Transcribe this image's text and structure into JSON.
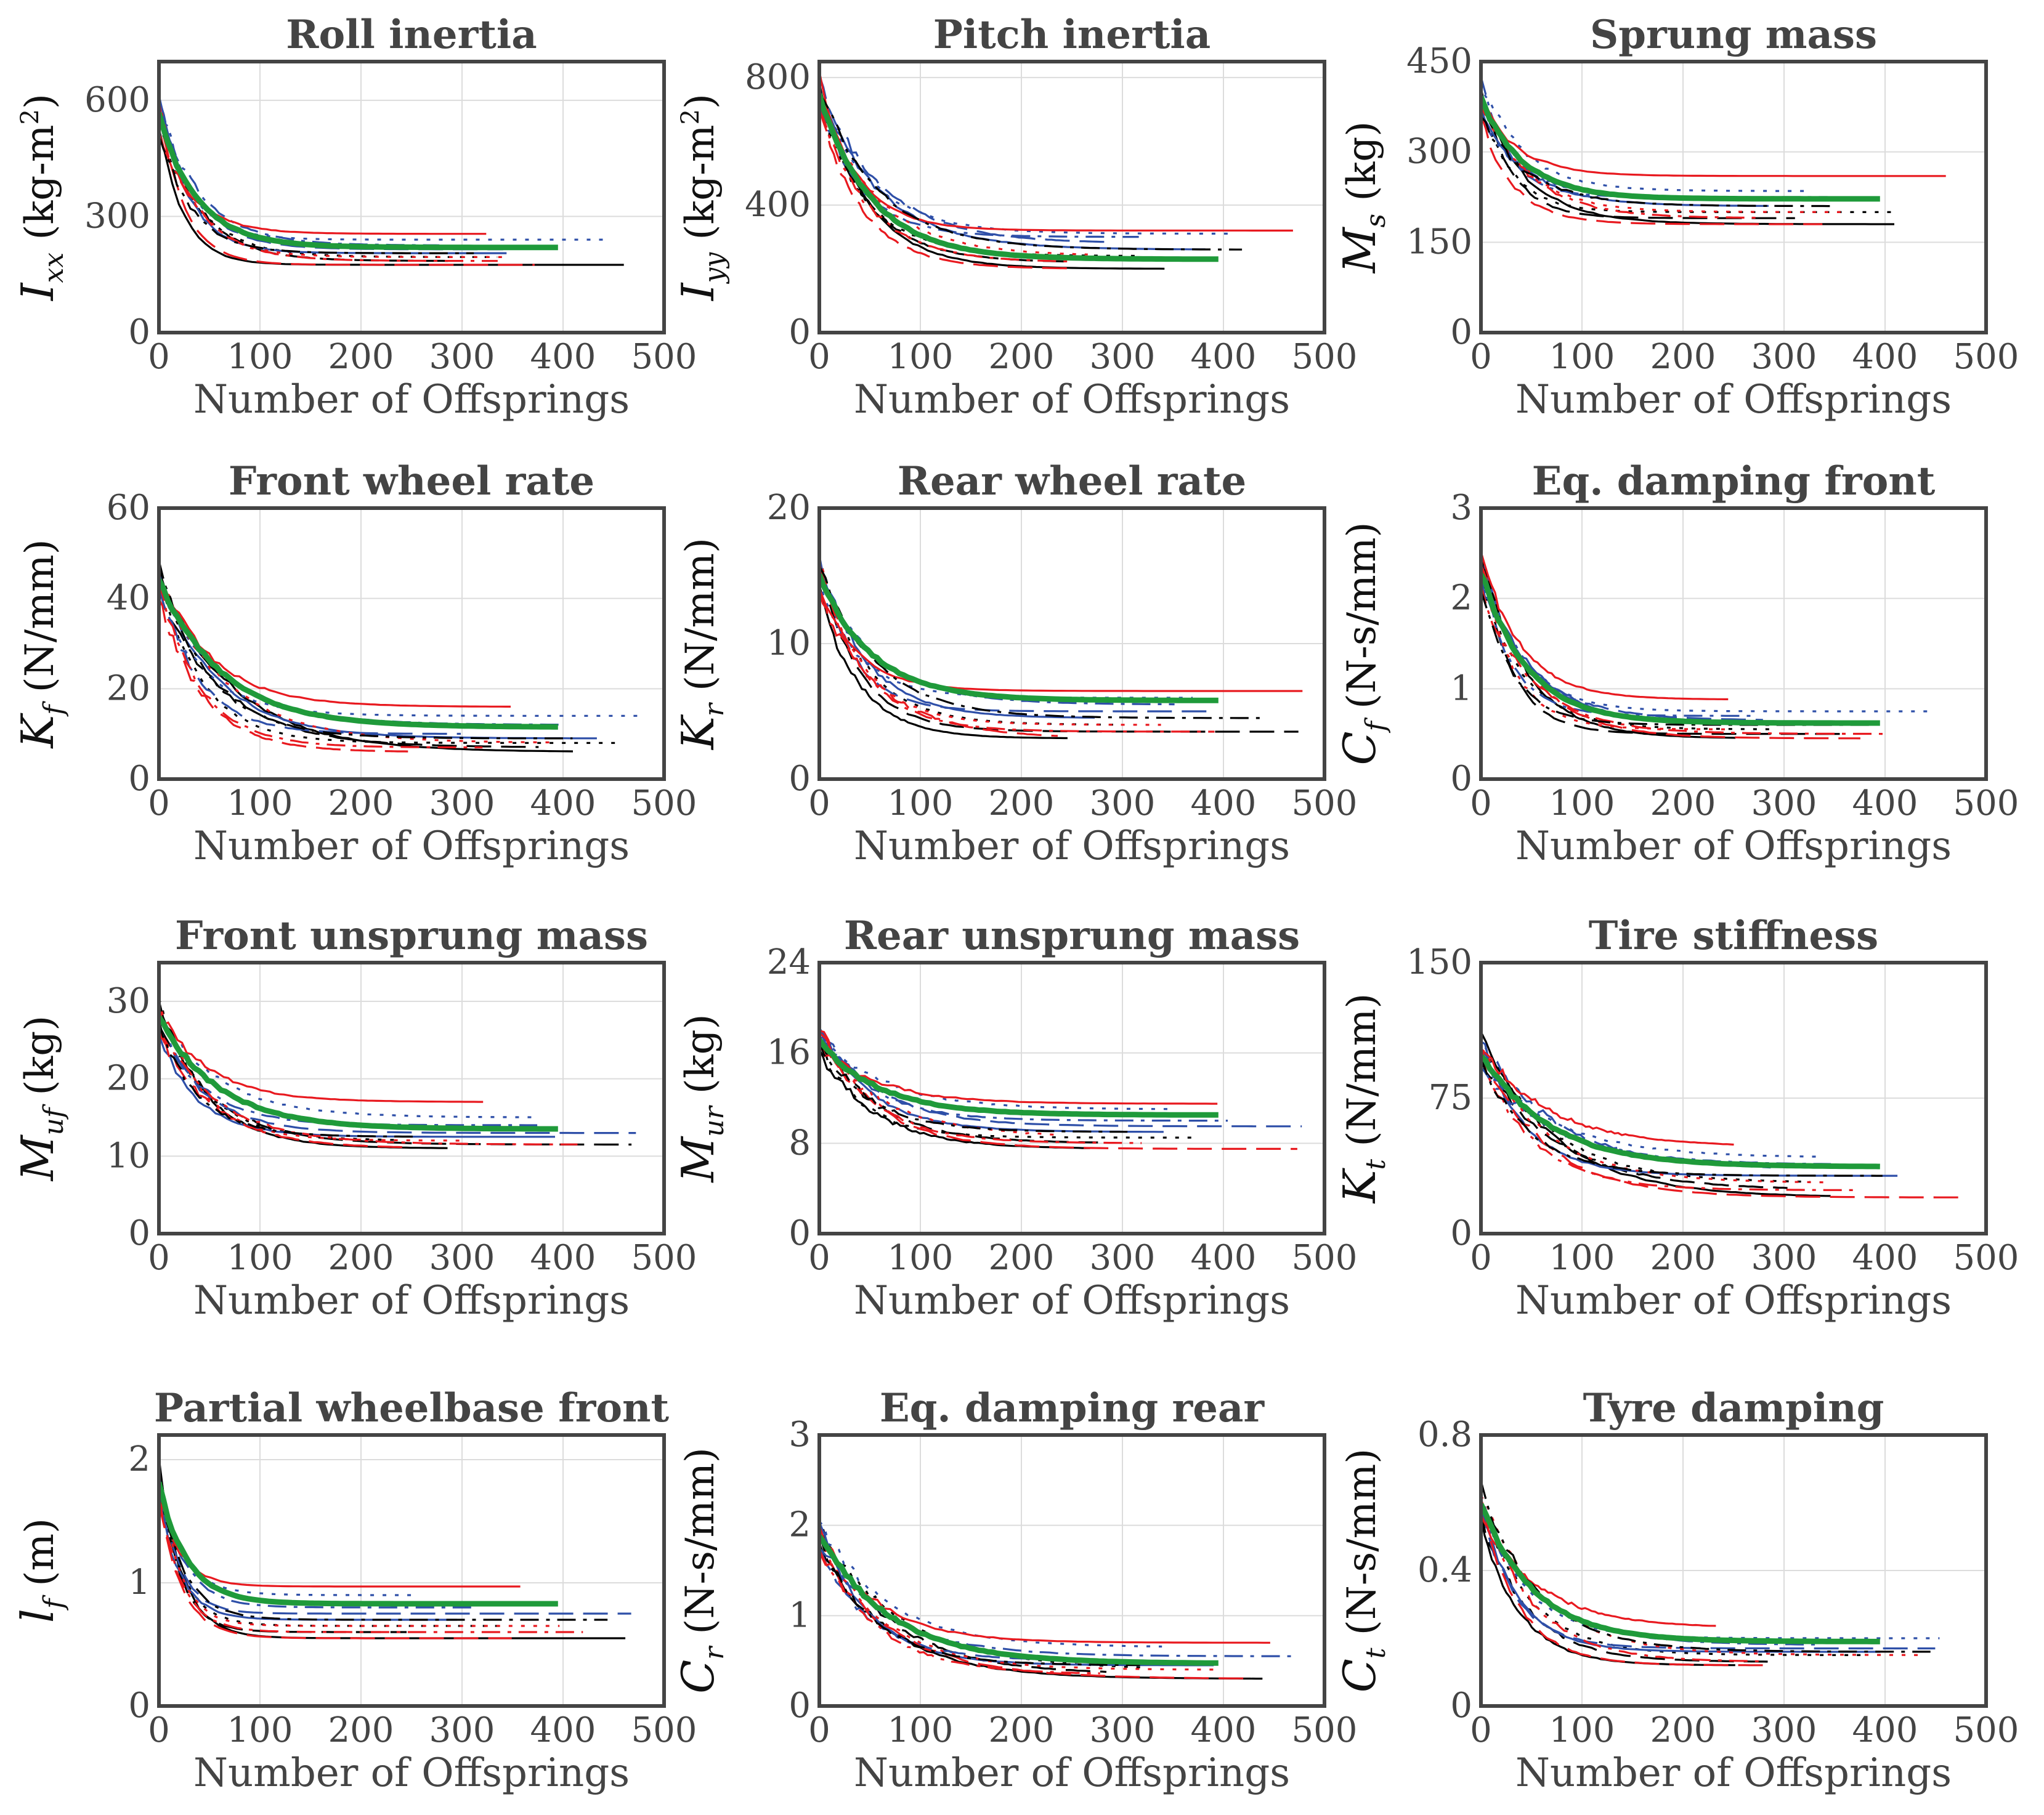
{
  "colors": {
    "black": "#000000",
    "blue": "#2e4fa8",
    "red": "#e8191f",
    "green": "#1f9a3a",
    "axis": "#444444",
    "grid": "#dcdcdc"
  },
  "chart_data": [
    {
      "type": "line",
      "title": "Roll inertia",
      "xlabel": "Number of Offsprings",
      "ylabel": {
        "sym": "I",
        "sub": "xx",
        "unit": " (kg-m",
        "sup": "2",
        "close": ")"
      },
      "xlim": [
        0,
        500
      ],
      "ylim": [
        0,
        700
      ],
      "xticks": [
        0,
        100,
        200,
        300,
        400,
        500
      ],
      "yticks": [
        0,
        300,
        600
      ],
      "start": 560,
      "end_values": [
        175,
        185,
        195,
        205,
        215,
        225,
        240,
        255
      ],
      "green_end": 220,
      "settle_x": 110
    },
    {
      "type": "line",
      "title": "Pitch inertia",
      "xlabel": "Number of Offsprings",
      "ylabel": {
        "sym": "I",
        "sub": "yy",
        "unit": " (kg-m",
        "sup": "2",
        "close": ")"
      },
      "xlim": [
        0,
        500
      ],
      "ylim": [
        0,
        850
      ],
      "xticks": [
        0,
        100,
        200,
        300,
        400,
        500
      ],
      "yticks": [
        0,
        400,
        800
      ],
      "start": 740,
      "end_values": [
        200,
        220,
        240,
        260,
        280,
        300,
        310,
        320
      ],
      "green_end": 230,
      "settle_x": 150
    },
    {
      "type": "line",
      "title": "Sprung mass",
      "xlabel": "Number of Offsprings",
      "ylabel": {
        "sym": "M",
        "sub": "s",
        "unit": " (kg)",
        "sup": "",
        "close": ""
      },
      "xlim": [
        0,
        500
      ],
      "ylim": [
        0,
        450
      ],
      "xticks": [
        0,
        100,
        200,
        300,
        400,
        500
      ],
      "yticks": [
        0,
        150,
        300,
        450
      ],
      "start": 390,
      "end_values": [
        180,
        190,
        200,
        210,
        220,
        225,
        235,
        260
      ],
      "green_end": 222,
      "settle_x": 120
    },
    {
      "type": "line",
      "title": "Front wheel rate",
      "xlabel": "Number of Offsprings",
      "ylabel": {
        "sym": "K",
        "sub": "f",
        "unit": " (N/mm)",
        "sup": "",
        "close": ""
      },
      "xlim": [
        0,
        500
      ],
      "ylim": [
        0,
        60
      ],
      "xticks": [
        0,
        100,
        200,
        300,
        400,
        500
      ],
      "yticks": [
        0,
        20,
        40,
        60
      ],
      "start": 44,
      "end_values": [
        6,
        7,
        8,
        9,
        10,
        12,
        14,
        16
      ],
      "green_end": 11.5,
      "settle_x": 180
    },
    {
      "type": "line",
      "title": "Rear wheel rate",
      "xlabel": "Number of Offsprings",
      "ylabel": {
        "sym": "K",
        "sub": "r",
        "unit": " (N/mm)",
        "sup": "",
        "close": ""
      },
      "xlim": [
        0,
        500
      ],
      "ylim": [
        0,
        20
      ],
      "xticks": [
        0,
        100,
        200,
        300,
        400,
        500
      ],
      "yticks": [
        0,
        10,
        20
      ],
      "start": 15,
      "end_values": [
        3,
        3.5,
        4,
        4.5,
        5,
        5.5,
        6,
        6.5
      ],
      "green_end": 5.8,
      "settle_x": 150
    },
    {
      "type": "line",
      "title": "Eq. damping front",
      "xlabel": "Number of Offsprings",
      "ylabel": {
        "sym": "C",
        "sub": "f",
        "unit": " (N-s/mm)",
        "sup": "",
        "close": ""
      },
      "xlim": [
        0,
        500
      ],
      "ylim": [
        0,
        3
      ],
      "xticks": [
        0,
        100,
        200,
        300,
        400,
        500
      ],
      "yticks": [
        0,
        1,
        2,
        3
      ],
      "start": 2.3,
      "end_values": [
        0.45,
        0.5,
        0.55,
        0.6,
        0.65,
        0.7,
        0.75,
        0.88
      ],
      "green_end": 0.62,
      "settle_x": 130
    },
    {
      "type": "line",
      "title": "Front unsprung mass",
      "xlabel": "Number of Offsprings",
      "ylabel": {
        "sym": "M",
        "sub": "uf",
        "unit": " (kg)",
        "sup": "",
        "close": ""
      },
      "xlim": [
        0,
        500
      ],
      "ylim": [
        0,
        35
      ],
      "xticks": [
        0,
        100,
        200,
        300,
        400,
        500
      ],
      "yticks": [
        0,
        10,
        20,
        30
      ],
      "start": 28,
      "end_values": [
        11,
        11.5,
        12,
        12.5,
        13,
        14,
        15,
        17
      ],
      "green_end": 13.5,
      "settle_x": 170
    },
    {
      "type": "line",
      "title": "Rear unsprung mass",
      "xlabel": "Number of Offsprings",
      "ylabel": {
        "sym": "M",
        "sub": "ur",
        "unit": " (kg)",
        "sup": "",
        "close": ""
      },
      "xlim": [
        0,
        500
      ],
      "ylim": [
        0,
        24
      ],
      "xticks": [
        0,
        100,
        200,
        300,
        400,
        500
      ],
      "yticks": [
        0,
        8,
        16,
        24
      ],
      "start": 17,
      "end_values": [
        7.5,
        8,
        8.5,
        9,
        9.5,
        10,
        11,
        11.5
      ],
      "green_end": 10.5,
      "settle_x": 170
    },
    {
      "type": "line",
      "title": "Tire stiffness",
      "xlabel": "Number of Offsprings",
      "ylabel": {
        "sym": "K",
        "sub": "t",
        "unit": " (N/mm)",
        "sup": "",
        "close": ""
      },
      "xlim": [
        0,
        500
      ],
      "ylim": [
        0,
        150
      ],
      "xticks": [
        0,
        100,
        200,
        300,
        400,
        500
      ],
      "yticks": [
        0,
        75,
        150
      ],
      "start": 100,
      "end_values": [
        20,
        24,
        28,
        32,
        35,
        38,
        42,
        48
      ],
      "green_end": 37,
      "settle_x": 190
    },
    {
      "type": "line",
      "title": "Partial wheelbase front",
      "xlabel": "Number of Offsprings",
      "ylabel": {
        "sym": "l",
        "sub": "f",
        "unit": " (m)",
        "sup": "",
        "close": ""
      },
      "xlim": [
        0,
        500
      ],
      "ylim": [
        0,
        2.2
      ],
      "xticks": [
        0,
        100,
        200,
        300,
        400,
        500
      ],
      "yticks": [
        0,
        1,
        2
      ],
      "start": 1.8,
      "end_values": [
        0.55,
        0.6,
        0.65,
        0.7,
        0.75,
        0.8,
        0.9,
        0.97
      ],
      "green_end": 0.83,
      "settle_x": 80
    },
    {
      "type": "line",
      "title": "Eq. damping rear",
      "xlabel": "Number of Offsprings",
      "ylabel": {
        "sym": "C",
        "sub": "r",
        "unit": " (N-s/mm)",
        "sup": "",
        "close": ""
      },
      "xlim": [
        0,
        500
      ],
      "ylim": [
        0,
        3
      ],
      "xticks": [
        0,
        100,
        200,
        300,
        400,
        500
      ],
      "yticks": [
        0,
        1,
        2,
        3
      ],
      "start": 1.9,
      "end_values": [
        0.3,
        0.35,
        0.4,
        0.45,
        0.5,
        0.55,
        0.65,
        0.7
      ],
      "green_end": 0.47,
      "settle_x": 200
    },
    {
      "type": "line",
      "title": "Tyre damping",
      "xlabel": "Number of Offsprings",
      "ylabel": {
        "sym": "C",
        "sub": "t",
        "unit": " (N-s/mm)",
        "sup": "",
        "close": ""
      },
      "xlim": [
        0,
        500
      ],
      "ylim": [
        0,
        0.8
      ],
      "xticks": [
        0,
        100,
        200,
        300,
        400,
        500
      ],
      "yticks": [
        0,
        0.4,
        0.8
      ],
      "start": 0.6,
      "end_values": [
        0.12,
        0.13,
        0.15,
        0.16,
        0.17,
        0.18,
        0.2,
        0.23
      ],
      "green_end": 0.19,
      "settle_x": 150
    }
  ]
}
